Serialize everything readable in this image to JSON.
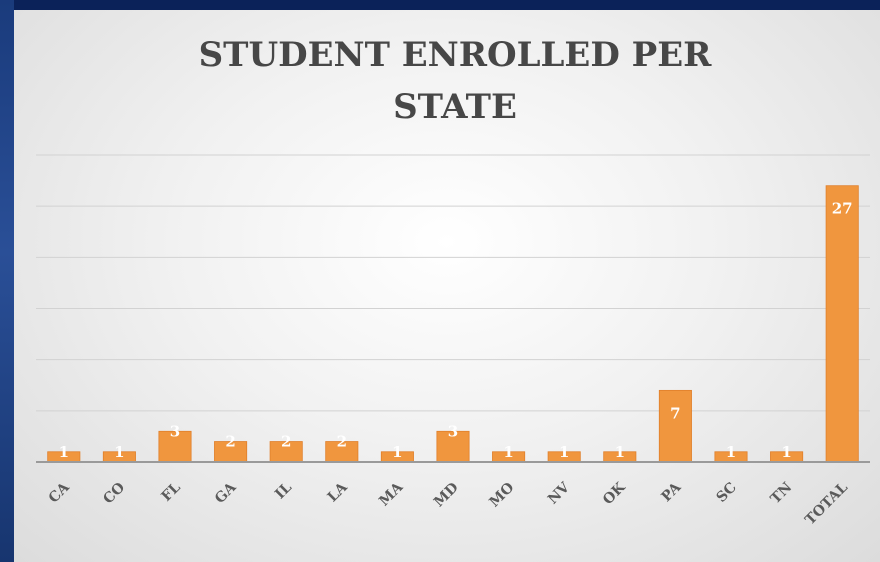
{
  "chart_data": {
    "type": "bar",
    "title_lines": [
      "STUDENT ENROLLED PER",
      "STATE"
    ],
    "categories": [
      "CA",
      "CO",
      "FL",
      "GA",
      "IL",
      "LA",
      "MA",
      "MD",
      "MO",
      "NV",
      "OK",
      "PA",
      "SC",
      "TN",
      "TOTAL"
    ],
    "values": [
      1,
      1,
      3,
      2,
      2,
      2,
      1,
      3,
      1,
      1,
      1,
      7,
      1,
      1,
      27
    ],
    "ylim": [
      0,
      30
    ],
    "grid": true,
    "legend": "none",
    "colors": {
      "bar": "#f0963e",
      "bar_edge": "#e07f2a",
      "grid": "#d2d2d2",
      "axis": "#9a9a9a",
      "background_frame": "#0d2a63"
    }
  }
}
